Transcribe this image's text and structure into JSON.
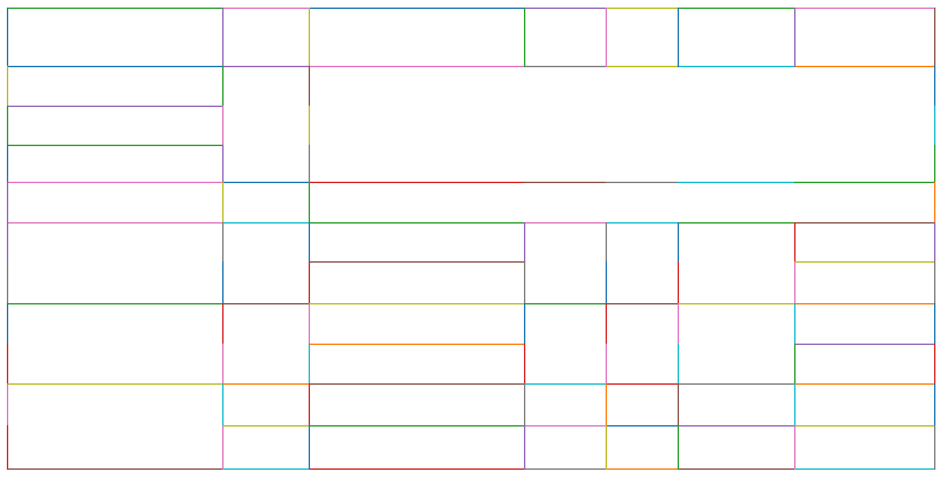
{
  "diagram": {
    "type": "rectangular-partition-grid",
    "background": "#ffffff",
    "palette": {
      "blue": "#1f77b4",
      "orange": "#ff7f0e",
      "green": "#2ca02c",
      "red": "#d62728",
      "purple": "#9467bd",
      "brown": "#8c564b",
      "pink": "#e377c2",
      "gray": "#7f7f7f",
      "olive": "#bcbd22",
      "cyan": "#17becf"
    }
  }
}
